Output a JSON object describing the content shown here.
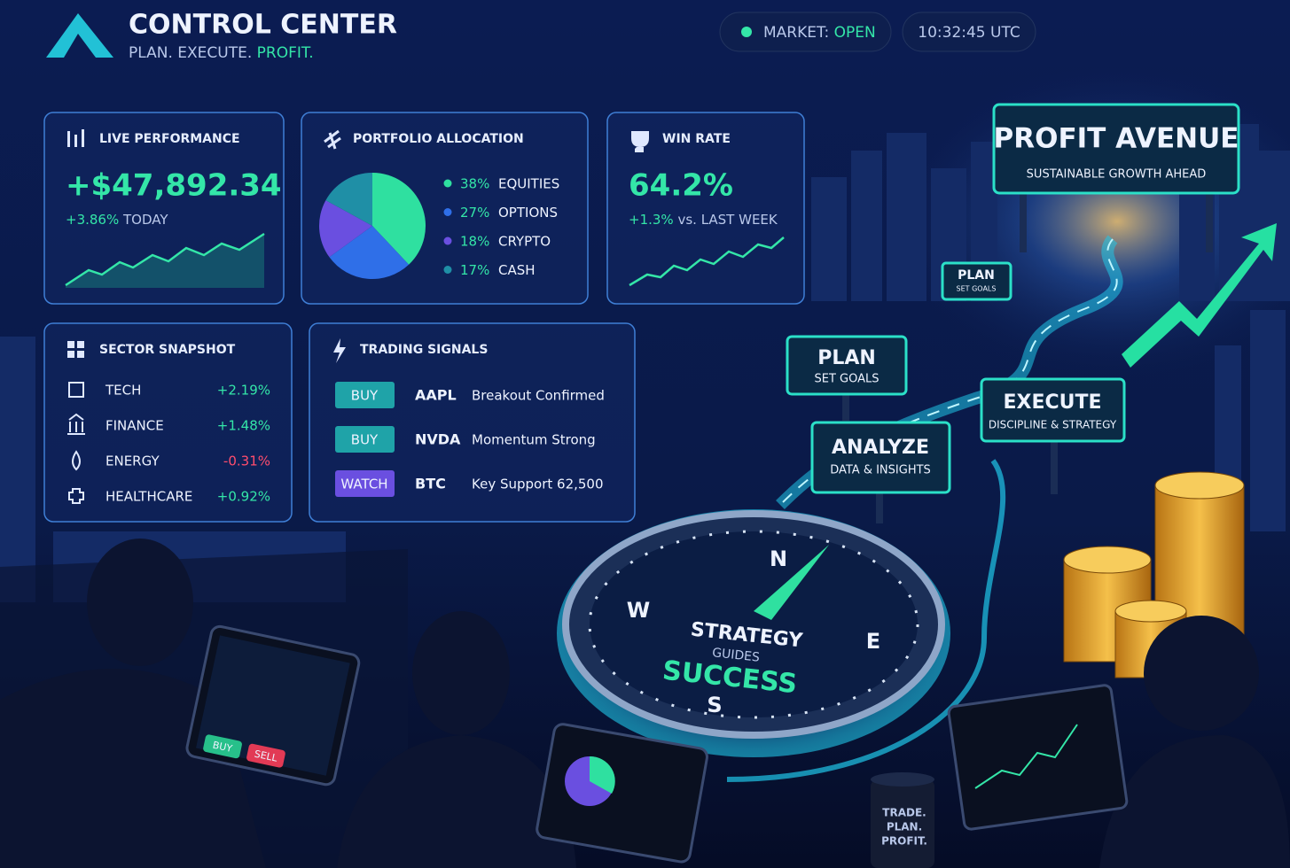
{
  "header": {
    "title": "CONTROL CENTER",
    "tagline": [
      "PLAN. EXECUTE.",
      "PROFIT."
    ]
  },
  "status": {
    "market_label": "MARKET:",
    "market_state": "OPEN",
    "time": "10:32:45 UTC"
  },
  "live_performance": {
    "title": "LIVE PERFORMANCE",
    "value": "+$47,892.34",
    "change": "+3.86%",
    "period": "TODAY"
  },
  "portfolio": {
    "title": "PORTFOLIO ALLOCATION",
    "type": "pie",
    "items": [
      {
        "name": "EQUITIES",
        "value": 38,
        "label": "38%",
        "color": "#2fe0a0"
      },
      {
        "name": "OPTIONS",
        "value": 27,
        "label": "27%",
        "color": "#2f6fe8"
      },
      {
        "name": "CRYPTO",
        "value": 18,
        "label": "18%",
        "color": "#6a4fe0"
      },
      {
        "name": "CASH",
        "value": 17,
        "label": "17%",
        "color": "#1f8fa6"
      }
    ]
  },
  "win_rate": {
    "title": "WIN RATE",
    "value": "64.2%",
    "change": "+1.3%",
    "period": "vs. LAST WEEK"
  },
  "sectors": {
    "title": "SECTOR SNAPSHOT",
    "rows": [
      {
        "name": "TECH",
        "change": "+2.19%"
      },
      {
        "name": "FINANCE",
        "change": "+1.48%"
      },
      {
        "name": "ENERGY",
        "change": "-0.31%"
      },
      {
        "name": "HEALTHCARE",
        "change": "+0.92%"
      }
    ]
  },
  "signals": {
    "title": "TRADING SIGNALS",
    "rows": [
      {
        "action": "BUY",
        "ticker": "AAPL",
        "note": "Breakout Confirmed"
      },
      {
        "action": "BUY",
        "ticker": "NVDA",
        "note": "Momentum Strong"
      },
      {
        "action": "WATCH",
        "ticker": "BTC",
        "note": "Key Support 62,500"
      }
    ]
  },
  "scene": {
    "avenue": {
      "title": "PROFIT AVENUE",
      "subtitle": "SUSTAINABLE GROWTH AHEAD"
    },
    "signs": [
      {
        "title": "PLAN",
        "subtitle": "SET GOALS"
      },
      {
        "title": "PLAN",
        "subtitle": "SET GOALS"
      },
      {
        "title": "EXECUTE",
        "subtitle": "DISCIPLINE & STRATEGY"
      },
      {
        "title": "ANALYZE",
        "subtitle": "DATA & INSIGHTS"
      }
    ],
    "compass": {
      "north": "N",
      "west": "W",
      "east": "E",
      "south": "S",
      "line1": "STRATEGY",
      "line2": "GUIDES",
      "line3": "SUCCESS"
    },
    "tablet": {
      "buy": "BUY",
      "sell": "SELL"
    },
    "mug": [
      "TRADE.",
      "PLAN.",
      "PROFIT."
    ]
  }
}
